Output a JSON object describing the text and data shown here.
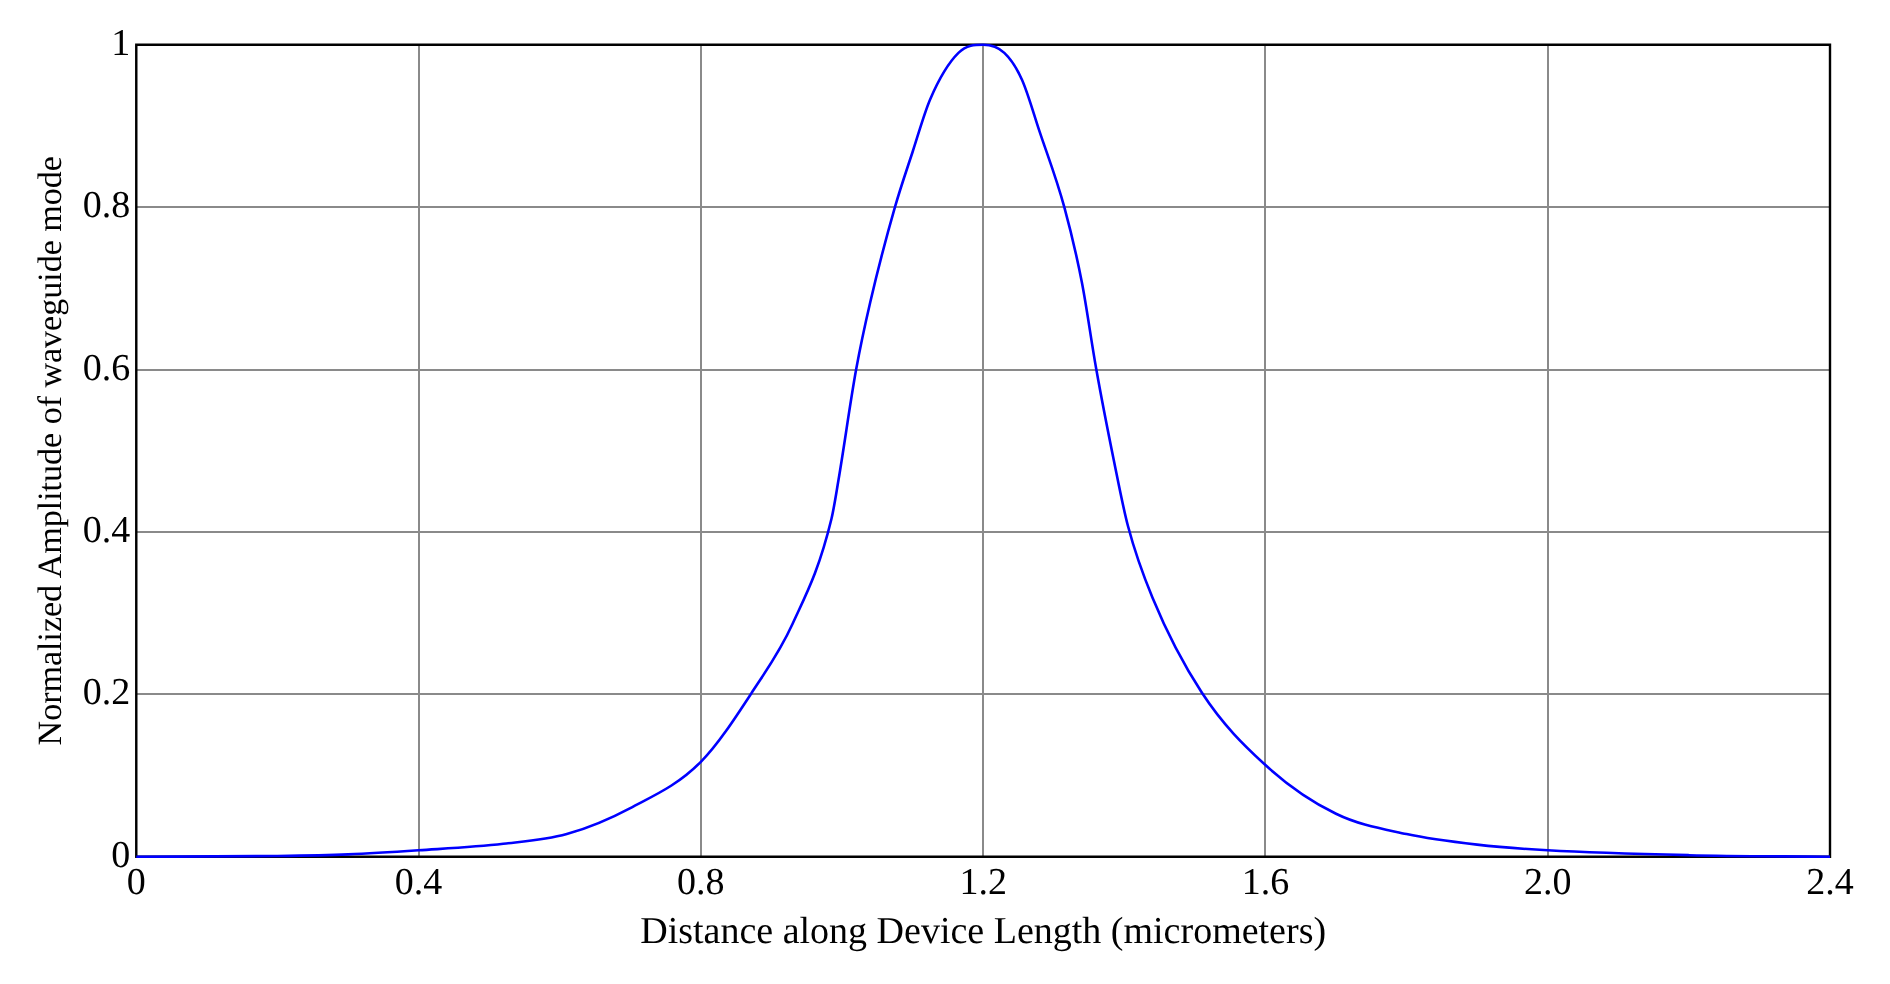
{
  "chart_data": {
    "type": "line",
    "xlabel": "Distance along Device Length (micrometers)",
    "ylabel": "Normalized Amplitude of waveguide mode",
    "series": [
      {
        "color": "#0000ff",
        "x": [
          0,
          0.2,
          0.3,
          0.4,
          0.52,
          0.61,
          0.7,
          0.8,
          0.875,
          0.93,
          0.985,
          0.995,
          1.02,
          1.04,
          1.075,
          1.1,
          1.125,
          1.165,
          1.2,
          1.23,
          1.255,
          1.28,
          1.315,
          1.34,
          1.36,
          1.385,
          1.405,
          1.44,
          1.51,
          1.6,
          1.7,
          1.8,
          1.9,
          2.0,
          2.2,
          2.4
        ],
        "values": [
          0,
          0.001,
          0.003,
          0.008,
          0.016,
          0.028,
          0.06,
          0.117,
          0.206,
          0.287,
          0.416,
          0.464,
          0.6,
          0.683,
          0.8,
          0.868,
          0.933,
          0.99,
          1,
          0.99,
          0.957,
          0.893,
          0.8,
          0.707,
          0.602,
          0.489,
          0.408,
          0.319,
          0.202,
          0.113,
          0.053,
          0.028,
          0.015,
          0.008,
          0.002,
          0
        ]
      }
    ],
    "xlim": [
      0,
      2.4
    ],
    "xticks": [
      0,
      0.4,
      0.8,
      1.2,
      1.6,
      {
        "value": 2,
        "label": "2.0"
      },
      2.4
    ],
    "ylim": [
      0,
      1
    ],
    "yticks": [
      0,
      0.2,
      0.4,
      0.6,
      0.8,
      1
    ],
    "grid": true,
    "legend": false,
    "marker": "none",
    "line_style": "solid"
  }
}
